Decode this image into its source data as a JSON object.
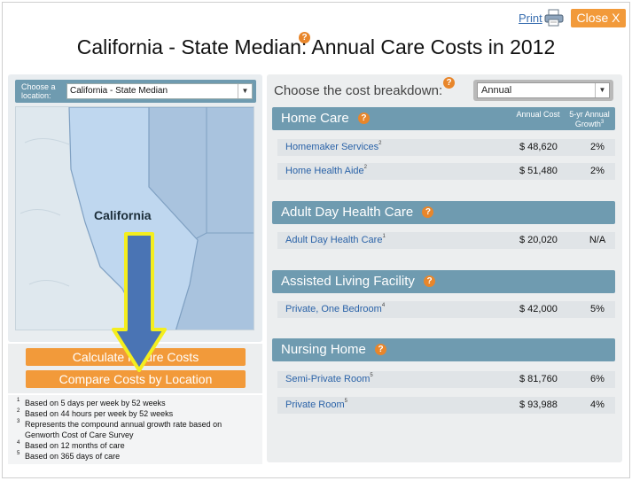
{
  "header": {
    "print_label": "Print",
    "close_label": "Close X",
    "title": "California - State Median: Annual Care Costs in 2012"
  },
  "location": {
    "label": "Choose a location:",
    "selected": "California - State Median",
    "map_state_label": "California"
  },
  "buttons": {
    "calculate": "Calculate Future Costs",
    "compare": "Compare Costs by Location"
  },
  "footnotes": [
    {
      "num": "1",
      "text": "Based on 5 days per week by 52 weeks"
    },
    {
      "num": "2",
      "text": "Based on 44 hours per week by 52 weeks"
    },
    {
      "num": "3",
      "text": "Represents the compound annual growth rate based on"
    },
    {
      "num": "",
      "text": "Genworth Cost of Care Survey"
    },
    {
      "num": "4",
      "text": "Based on 12 months of care"
    },
    {
      "num": "5",
      "text": "Based on 365 days of care"
    }
  ],
  "breakdown": {
    "label": "Choose the cost breakdown:",
    "selected": "Annual"
  },
  "columns": {
    "annual": "Annual Cost",
    "growth": "5-yr Annual Growth",
    "growth_sup": "3"
  },
  "sections": [
    {
      "title": "Home Care",
      "rows": [
        {
          "name": "Homemaker Services",
          "sup": "2",
          "cost": "$ 48,620",
          "growth": "2%"
        },
        {
          "name": "Home Health Aide",
          "sup": "2",
          "cost": "$ 51,480",
          "growth": "2%"
        }
      ]
    },
    {
      "title": "Adult Day Health Care",
      "rows": [
        {
          "name": "Adult Day Health Care",
          "sup": "1",
          "cost": "$ 20,020",
          "growth": "N/A"
        }
      ]
    },
    {
      "title": "Assisted Living Facility",
      "rows": [
        {
          "name": "Private, One Bedroom",
          "sup": "4",
          "cost": "$ 42,000",
          "growth": "5%"
        }
      ]
    },
    {
      "title": "Nursing Home",
      "rows": [
        {
          "name": "Semi-Private Room",
          "sup": "5",
          "cost": "$ 81,760",
          "growth": "6%"
        },
        {
          "name": "Private Room",
          "sup": "5",
          "cost": "$ 93,988",
          "growth": "4%"
        }
      ]
    }
  ],
  "help_symbol": "?",
  "colors": {
    "accent_orange": "#f29a3a",
    "section_blue": "#6f9bb0",
    "link_blue": "#2b63a8",
    "arrow_blue": "#4a74b4",
    "arrow_outline": "#f4ee1e"
  }
}
